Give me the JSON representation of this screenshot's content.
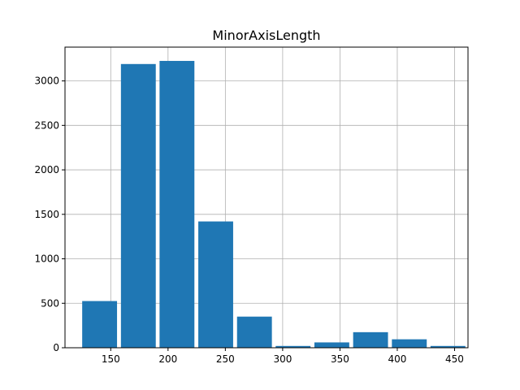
{
  "chart_data": {
    "type": "bar",
    "title": "MinorAxisLength",
    "xlabel": "",
    "ylabel": "",
    "bar_color": "#1f77b4",
    "grid": true,
    "xlim": [
      110.1,
      461.7
    ],
    "ylim": [
      0,
      3380
    ],
    "bins": [
      {
        "x0": 125.1,
        "x1": 155.5,
        "value": 525
      },
      {
        "x0": 158.9,
        "x1": 189.3,
        "value": 3190
      },
      {
        "x0": 192.6,
        "x1": 223.0,
        "value": 3225
      },
      {
        "x0": 226.4,
        "x1": 256.8,
        "value": 1420
      },
      {
        "x0": 260.2,
        "x1": 290.6,
        "value": 350
      },
      {
        "x0": 293.9,
        "x1": 324.3,
        "value": 20
      },
      {
        "x0": 327.7,
        "x1": 358.1,
        "value": 60
      },
      {
        "x0": 361.5,
        "x1": 391.9,
        "value": 175
      },
      {
        "x0": 395.3,
        "x1": 425.7,
        "value": 95
      },
      {
        "x0": 429.0,
        "x1": 459.4,
        "value": 20
      }
    ],
    "xticks": [
      150,
      200,
      250,
      300,
      350,
      400,
      450
    ],
    "xtick_labels": [
      "150",
      "200",
      "250",
      "300",
      "350",
      "400",
      "450"
    ],
    "yticks": [
      0,
      500,
      1000,
      1500,
      2000,
      2500,
      3000
    ],
    "ytick_labels": [
      "0",
      "500",
      "1000",
      "1500",
      "2000",
      "2500",
      "3000"
    ]
  }
}
